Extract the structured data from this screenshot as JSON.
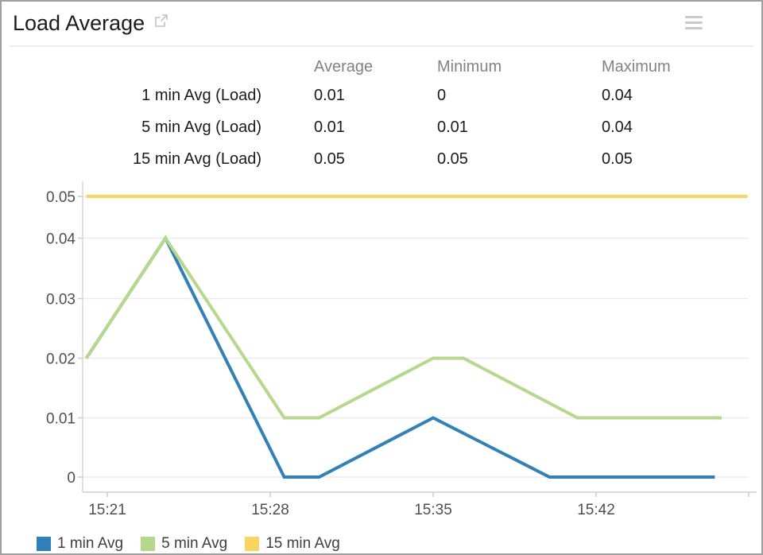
{
  "header": {
    "title": "Load Average"
  },
  "stats_table": {
    "columns": [
      "Average",
      "Minimum",
      "Maximum"
    ],
    "rows": [
      {
        "label": "1 min Avg (Load)",
        "average": "0.01",
        "minimum": "0",
        "maximum": "0.04"
      },
      {
        "label": "5 min Avg (Load)",
        "average": "0.01",
        "minimum": "0.01",
        "maximum": "0.04"
      },
      {
        "label": "15 min Avg (Load)",
        "average": "0.05",
        "minimum": "0.05",
        "maximum": "0.05"
      }
    ]
  },
  "chart_data": {
    "type": "line",
    "title": "Load Average",
    "x_unit": "time of day (minutes after 15:00)",
    "x_axis": {
      "tick_labels": [
        "15:21",
        "15:28",
        "15:35",
        "15:42"
      ],
      "tick_minutes": [
        21,
        28,
        35,
        42
      ]
    },
    "y_axis": {
      "tick_labels": [
        "0",
        "0.01",
        "0.02",
        "0.03",
        "0.04",
        "0.05"
      ],
      "tick_values": [
        0,
        0.01,
        0.02,
        0.03,
        0.04,
        0.05
      ],
      "range": [
        0,
        0.05
      ]
    },
    "grid": "horizontal",
    "legend_position": "bottom-left",
    "series": [
      {
        "name": "1 min Avg",
        "color": "#2e81bd",
        "points": [
          [
            20.1,
            0.02
          ],
          [
            23.5,
            0.04
          ],
          [
            28.6,
            0
          ],
          [
            30.1,
            0
          ],
          [
            35,
            0.01
          ],
          [
            40,
            0
          ],
          [
            47.1,
            0
          ]
        ]
      },
      {
        "name": "5 min Avg",
        "color": "#b5d98b",
        "points": [
          [
            20.1,
            0.02
          ],
          [
            23.5,
            0.04
          ],
          [
            28.6,
            0.01
          ],
          [
            30.1,
            0.01
          ],
          [
            35,
            0.02
          ],
          [
            36.3,
            0.02
          ],
          [
            41.2,
            0.01
          ],
          [
            47.4,
            0.01
          ]
        ]
      },
      {
        "name": "15 min Avg",
        "color": "#fbd45e",
        "points": [
          [
            20.1,
            0.05
          ],
          [
            48.5,
            0.05
          ]
        ]
      }
    ]
  }
}
